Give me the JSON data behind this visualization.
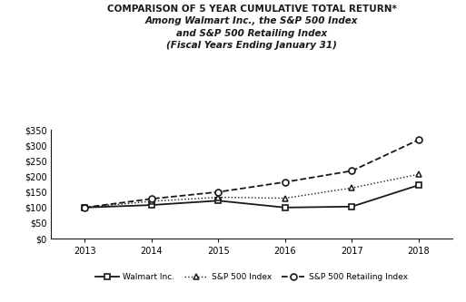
{
  "title_line1": "COMPARISON OF 5 YEAR CUMULATIVE TOTAL RETURN*",
  "title_line2": "Among Walmart Inc., the S&P 500 Index",
  "title_line3": "and S&P 500 Retailing Index",
  "title_line4": "(Fiscal Years Ending January 31)",
  "years": [
    2013,
    2014,
    2015,
    2016,
    2017,
    2018
  ],
  "walmart": [
    100,
    108,
    122,
    100,
    103,
    172
  ],
  "sp500": [
    100,
    120,
    133,
    130,
    163,
    207
  ],
  "sp500_retail": [
    100,
    128,
    150,
    182,
    218,
    318
  ],
  "ylim": [
    0,
    350
  ],
  "yticks": [
    0,
    50,
    100,
    150,
    200,
    250,
    300,
    350
  ],
  "color": "#1a1a1a",
  "bg_color": "#ffffff",
  "legend_walmart": "Walmart Inc.",
  "legend_sp500": "S&P 500 Index",
  "legend_retail": "S&P 500 Retailing Index",
  "title1_fontsize": 7.5,
  "title234_fontsize": 7.5
}
